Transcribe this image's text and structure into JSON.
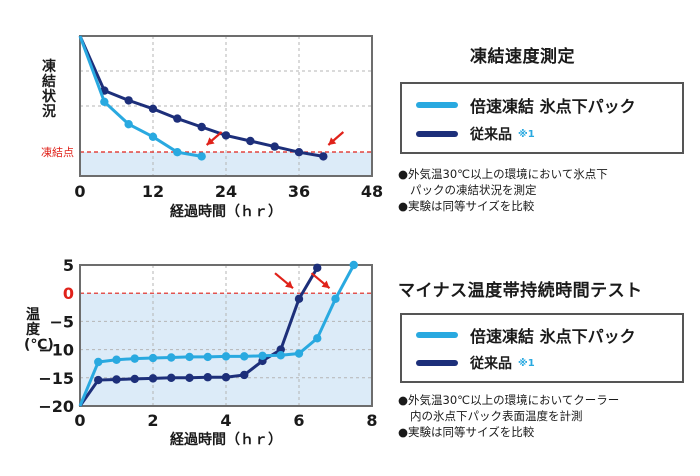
{
  "colors": {
    "new_product": "#29a9e0",
    "conventional": "#1d2f7a",
    "freeze_line": "#e0221a",
    "fill": "#dcebf8",
    "arrow": "#e0221a"
  },
  "chart_data": [
    {
      "type": "line",
      "title": "凍結速度測定",
      "xlabel": "経過時間（ｈｒ）",
      "ylabel": "凍結状況",
      "x_ticks": [
        0,
        12,
        24,
        36,
        48
      ],
      "xlim": [
        0,
        48
      ],
      "grid": true,
      "reference_line_label": "凍結点",
      "series": [
        {
          "name": "倍速凍結 氷点下パック",
          "x": [
            0,
            4,
            8,
            12,
            16,
            20
          ],
          "y": [
            1.0,
            0.53,
            0.37,
            0.28,
            0.17,
            0.14
          ]
        },
        {
          "name": "従来品",
          "name_note": "※1",
          "x": [
            0,
            4,
            8,
            12,
            16,
            20,
            24,
            28,
            32,
            36,
            40
          ],
          "y": [
            1.0,
            0.61,
            0.54,
            0.48,
            0.41,
            0.35,
            0.29,
            0.25,
            0.21,
            0.17,
            0.14
          ]
        }
      ],
      "freeze_point_marked": [
        {
          "series": "倍速凍結 氷点下パック",
          "x": 20
        },
        {
          "series": "従来品",
          "x": 40
        }
      ]
    },
    {
      "type": "line",
      "title": "マイナス温度帯持続時間テスト",
      "xlabel": "経過時間（ｈｒ）",
      "ylabel": "温度(℃)",
      "x_ticks": [
        0,
        2,
        4,
        6,
        8
      ],
      "y_ticks": [
        5,
        0,
        -5,
        -10,
        -15,
        -20
      ],
      "xlim": [
        0,
        8
      ],
      "ylim": [
        -20,
        5
      ],
      "grid": true,
      "series": [
        {
          "name": "倍速凍結 氷点下パック",
          "x": [
            0,
            0.5,
            1,
            1.5,
            2,
            2.5,
            3,
            3.5,
            4,
            4.5,
            5,
            5.5,
            6,
            6.5,
            7,
            7.5
          ],
          "y": [
            -20,
            -12.2,
            -11.8,
            -11.6,
            -11.5,
            -11.4,
            -11.3,
            -11.3,
            -11.2,
            -11.2,
            -11.1,
            -11.0,
            -10.7,
            -8.0,
            -1.0,
            5.0
          ]
        },
        {
          "name": "従来品",
          "name_note": "※1",
          "x": [
            0,
            0.5,
            1,
            1.5,
            2,
            2.5,
            3,
            3.5,
            4,
            4.5,
            5,
            5.5,
            6,
            6.5
          ],
          "y": [
            -20,
            -15.4,
            -15.3,
            -15.2,
            -15.1,
            -15.0,
            -15.0,
            -14.9,
            -14.9,
            -14.5,
            -12.0,
            -10.0,
            -1.0,
            4.5
          ]
        }
      ],
      "zero_crossing_marked": [
        {
          "series": "従来品",
          "x": 6
        },
        {
          "series": "倍速凍結 氷点下パック",
          "x": 7
        }
      ]
    }
  ],
  "panel1": {
    "heading": "凍結速度測定",
    "legend_new": "倍速凍結 氷点下パック",
    "legend_old": "従来品",
    "legend_note": "※1",
    "notes": [
      "●外気温30℃以上の環境において氷点下",
      "パックの凍結状況を測定",
      "●実験は同等サイズを比較"
    ]
  },
  "panel2": {
    "heading": "マイナス温度帯持続時間テスト",
    "legend_new": "倍速凍結 氷点下パック",
    "legend_old": "従来品",
    "legend_note": "※1",
    "notes": [
      "●外気温30℃以上の環境においてクーラー",
      "内の氷点下パック表面温度を計測",
      "●実験は同等サイズを比較"
    ]
  }
}
